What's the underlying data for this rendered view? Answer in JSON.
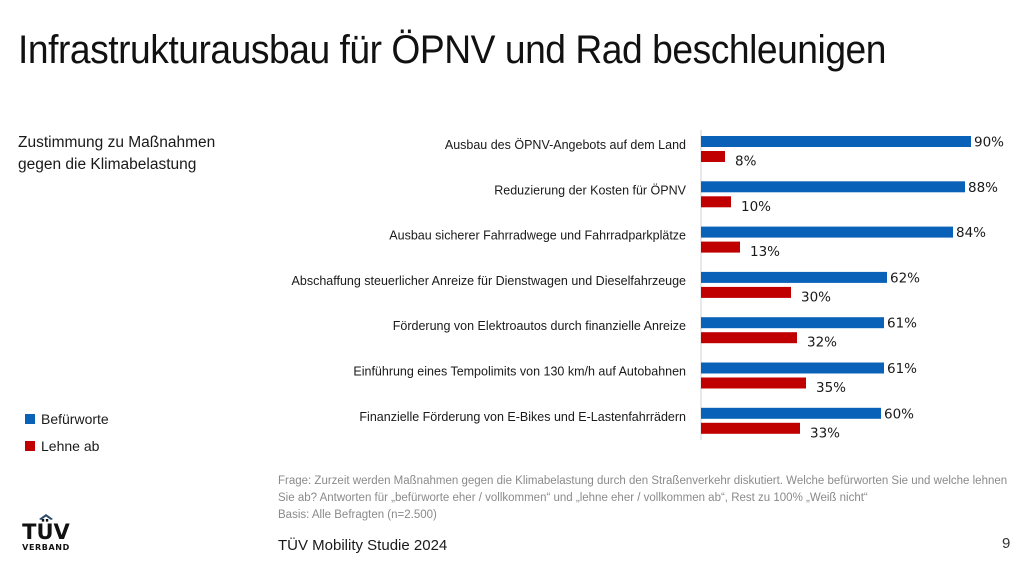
{
  "slide": {
    "title": "Infrastrukturausbau für ÖPNV und Rad beschleunigen",
    "subtitle_line1": "Zustimmung zu Maßnahmen",
    "subtitle_line2": "gegen die Klimabelastung",
    "note_line1": "Frage: Zurzeit werden Maßnahmen gegen die Klimabelastung durch den Straßenverkehr diskutiert. Welche befürworten Sie und welche lehnen",
    "note_line2": "Sie ab? Antworten für „befürworte eher / vollkommen“ und „lehne eher / vollkommen ab“, Rest zu 100% „Weiß nicht“",
    "note_line3": "Basis: Alle Befragten (n=2.500)",
    "footer_title": "TÜV Mobility Studie 2024",
    "page_number": "9",
    "logo_text": "TÜV",
    "logo_subtext": "VERBAND"
  },
  "colors": {
    "approve": "#0a62b8",
    "reject": "#c00000",
    "axis": "#d0d0d0",
    "label": "#1a1a1a"
  },
  "chart_data": {
    "type": "bar",
    "orientation": "horizontal",
    "title": "Zustimmung zu Maßnahmen gegen die Klimabelastung",
    "xlabel": "",
    "ylabel": "",
    "xlim": [
      0,
      100
    ],
    "unit": "%",
    "grid": false,
    "legend_position": "bottom-left",
    "categories": [
      "Ausbau des ÖPNV-Angebots auf dem Land",
      "Reduzierung der Kosten für ÖPNV",
      "Ausbau sicherer Fahrradwege und Fahrradparkplätze",
      "Abschaffung steuerlicher Anreize für Dienstwagen und Dieselfahrzeuge",
      "Förderung von Elektroautos durch finanzielle Anreize",
      "Einführung eines Tempolimits von 130 km/h auf Autobahnen",
      "Finanzielle Förderung von E-Bikes und E-Lastenfahrrädern"
    ],
    "series": [
      {
        "name": "Befürworte",
        "color": "#0a62b8",
        "values": [
          90,
          88,
          84,
          62,
          61,
          61,
          60
        ]
      },
      {
        "name": "Lehne ab",
        "color": "#c00000",
        "values": [
          8,
          10,
          13,
          30,
          32,
          35,
          33
        ]
      }
    ]
  }
}
